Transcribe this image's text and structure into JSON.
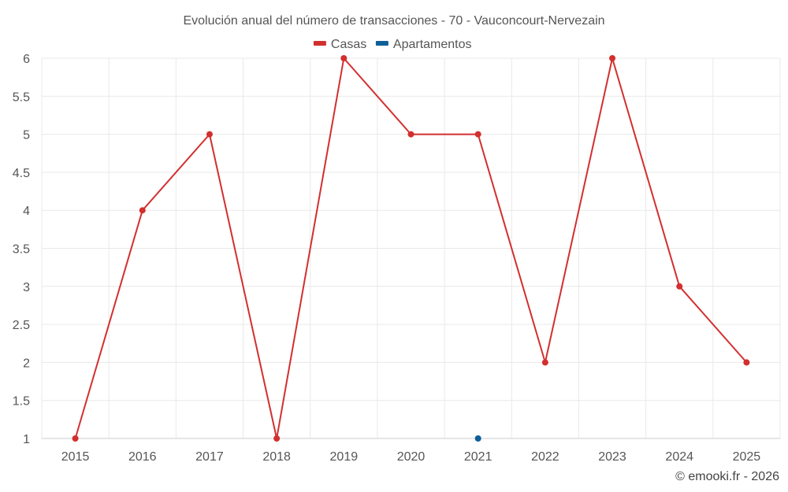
{
  "chart_data": {
    "type": "line",
    "title": "Evolución anual del número de transacciones - 70 - Vauconcourt-Nervezain",
    "categories": [
      "2015",
      "2016",
      "2017",
      "2018",
      "2019",
      "2020",
      "2021",
      "2022",
      "2023",
      "2024",
      "2025"
    ],
    "ylim": [
      1,
      6
    ],
    "yticks": [
      "1",
      "1.5",
      "2",
      "2.5",
      "3",
      "3.5",
      "4",
      "4.5",
      "5",
      "5.5",
      "6"
    ],
    "grid": true,
    "legend_position": "top-center",
    "series": [
      {
        "name": "Casas",
        "color": "#d32f2f",
        "values": [
          1,
          4,
          5,
          1,
          6,
          5,
          5,
          2,
          6,
          3,
          2
        ]
      },
      {
        "name": "Apartamentos",
        "color": "#0d5f99",
        "values": [
          null,
          null,
          null,
          null,
          null,
          null,
          1,
          null,
          null,
          null,
          null
        ]
      }
    ],
    "credit": "© emooki.fr - 2026"
  }
}
